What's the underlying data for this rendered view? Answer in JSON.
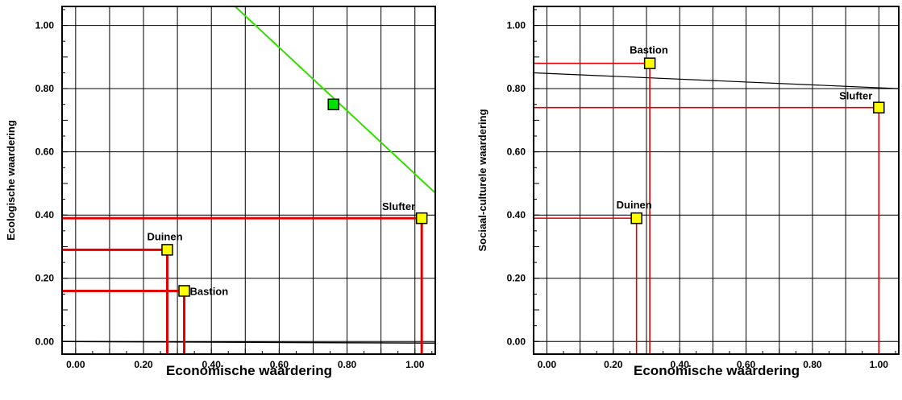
{
  "chart_data": [
    {
      "type": "scatter",
      "title": "",
      "xlabel": "Economische waardering",
      "ylabel": "Ecologische waardering",
      "xlim": [
        -0.04,
        1.06
      ],
      "ylim": [
        -0.04,
        1.06
      ],
      "xticks": [
        "0.00",
        "0.20",
        "0.40",
        "0.60",
        "0.80",
        "1.00"
      ],
      "yticks": [
        "0.00",
        "0.20",
        "0.40",
        "0.60",
        "0.80",
        "1.00"
      ],
      "grid": true,
      "points": [
        {
          "label": "Duinen",
          "x": 0.27,
          "y": 0.29,
          "color": "#ffff00"
        },
        {
          "label": "Bastion",
          "x": 0.32,
          "y": 0.16,
          "color": "#ffff00"
        },
        {
          "label": "Slufter",
          "x": 1.02,
          "y": 0.39,
          "color": "#ffff00"
        },
        {
          "label": "",
          "x": 0.76,
          "y": 0.75,
          "color": "#00e000"
        }
      ],
      "green_line": {
        "x": [
          0.47,
          1.06
        ],
        "y": [
          1.06,
          0.47
        ],
        "color": "#33dd00"
      },
      "baseline": {
        "x": [
          -0.04,
          1.06
        ],
        "y": [
          0.0,
          -0.005
        ]
      }
    },
    {
      "type": "scatter",
      "title": "",
      "xlabel": "Economische waardering",
      "ylabel": "Sociaal-culturele waardering",
      "xlim": [
        -0.04,
        1.06
      ],
      "ylim": [
        -0.04,
        1.06
      ],
      "xticks": [
        "0.00",
        "0.20",
        "0.40",
        "0.60",
        "0.80",
        "1.00"
      ],
      "yticks": [
        "0.00",
        "0.20",
        "0.40",
        "0.60",
        "0.80",
        "1.00"
      ],
      "grid": true,
      "points": [
        {
          "label": "Duinen",
          "x": 0.27,
          "y": 0.39,
          "color": "#ffff00"
        },
        {
          "label": "Bastion",
          "x": 0.31,
          "y": 0.88,
          "color": "#ffff00"
        },
        {
          "label": "Slufter",
          "x": 1.0,
          "y": 0.74,
          "color": "#ffff00"
        }
      ],
      "slope_line": {
        "x": [
          -0.04,
          1.06
        ],
        "y": [
          0.85,
          0.8
        ]
      }
    }
  ]
}
